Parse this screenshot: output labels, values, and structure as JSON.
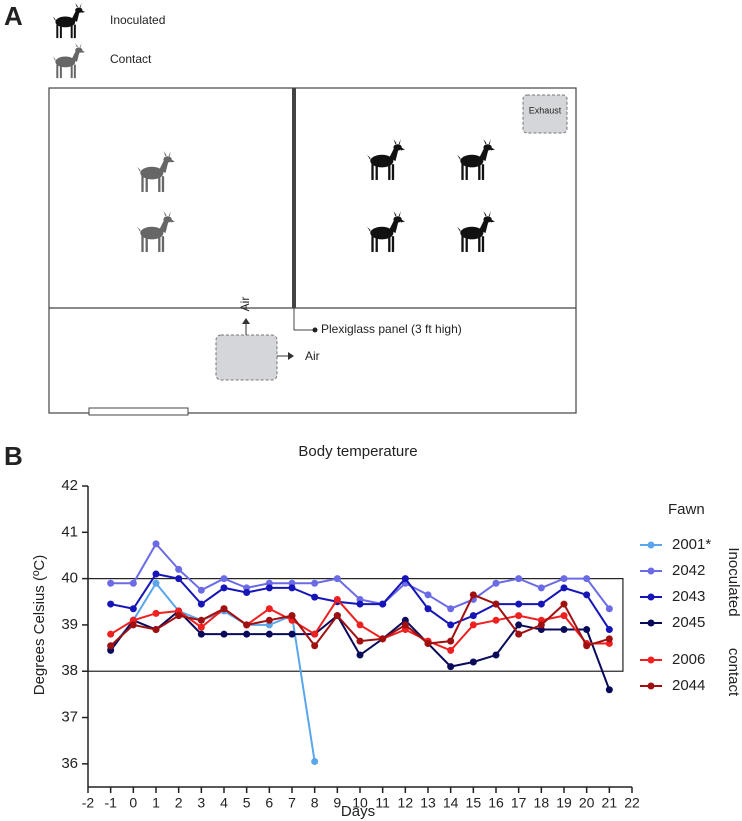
{
  "diagram": {
    "panel_label": "A",
    "legend": [
      "Inoculated",
      "Contact"
    ],
    "exhaust": "Exhaust",
    "panel": "Plexiglass panel (3 ft high)",
    "air_up": "Air",
    "air_right": "Air"
  },
  "chart_data": {
    "panel_label": "B",
    "type": "line",
    "title": "Body temperature",
    "xlabel": "Days",
    "ylabel": "Degrees Celsius (ºC)",
    "x": [
      -1,
      0,
      1,
      2,
      3,
      4,
      5,
      6,
      7,
      8,
      9,
      10,
      11,
      12,
      13,
      14,
      15,
      16,
      17,
      18,
      19,
      20,
      21
    ],
    "series": [
      {
        "name": "2001*",
        "color": "#5aa6ec",
        "values": [
          38.5,
          39.1,
          39.9,
          39.3,
          39.1,
          39.3,
          39.0,
          39.0,
          39.2,
          36.05,
          null,
          null,
          null,
          null,
          null,
          null,
          null,
          null,
          null,
          null,
          null,
          null,
          null
        ]
      },
      {
        "name": "2042",
        "color": "#6b6be6",
        "values": [
          39.9,
          39.9,
          40.75,
          40.2,
          39.75,
          40.0,
          39.8,
          39.9,
          39.9,
          39.9,
          40.0,
          39.55,
          39.45,
          39.9,
          39.65,
          39.35,
          39.55,
          39.9,
          40.0,
          39.8,
          40.0,
          40.0,
          39.35
        ]
      },
      {
        "name": "2043",
        "color": "#1515b8",
        "values": [
          39.45,
          39.35,
          40.1,
          40.0,
          39.45,
          39.8,
          39.7,
          39.8,
          39.8,
          39.6,
          39.5,
          39.45,
          39.45,
          40.0,
          39.35,
          39.0,
          39.2,
          39.45,
          39.45,
          39.45,
          39.8,
          39.65,
          38.9
        ]
      },
      {
        "name": "2045",
        "color": "#0a0a5a",
        "values": [
          38.45,
          39.1,
          38.9,
          39.3,
          38.8,
          38.8,
          38.8,
          38.8,
          38.8,
          38.8,
          39.2,
          38.35,
          38.7,
          39.1,
          38.6,
          38.1,
          38.2,
          38.35,
          39.0,
          38.9,
          38.9,
          38.9,
          37.6
        ]
      },
      {
        "name": "2006",
        "color": "#ee2020",
        "values": [
          38.8,
          39.1,
          39.25,
          39.3,
          38.95,
          39.35,
          39.0,
          39.35,
          39.1,
          38.8,
          39.55,
          39.0,
          38.7,
          38.9,
          38.65,
          38.45,
          39.0,
          39.1,
          39.2,
          39.1,
          39.2,
          38.6,
          38.6
        ]
      },
      {
        "name": "2044",
        "color": "#a01010",
        "values": [
          38.55,
          39.0,
          38.9,
          39.2,
          39.1,
          39.35,
          39.0,
          39.1,
          39.2,
          38.55,
          39.2,
          38.65,
          38.7,
          39.0,
          38.6,
          38.65,
          39.65,
          39.45,
          38.8,
          39.0,
          39.45,
          38.55,
          38.7
        ]
      }
    ],
    "legend_title": "Fawn",
    "legend_groups": [
      "Inoculated",
      "contact"
    ],
    "band": {
      "ylim": [
        38,
        40
      ],
      "xlim": [
        -2,
        21.6
      ]
    },
    "xlim": [
      -2,
      22
    ],
    "xticks": [
      -2,
      -1,
      0,
      1,
      2,
      3,
      4,
      5,
      6,
      7,
      8,
      9,
      10,
      11,
      12,
      13,
      14,
      15,
      16,
      17,
      18,
      19,
      20,
      21,
      22
    ],
    "ylim": [
      35.5,
      42
    ],
    "yticks": [
      36,
      37,
      38,
      39,
      40,
      41,
      42
    ]
  }
}
